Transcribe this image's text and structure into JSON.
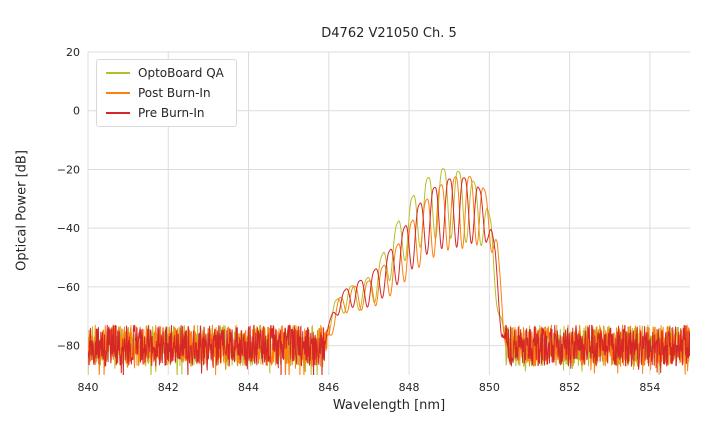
{
  "chart_data": {
    "type": "line",
    "title": "D4762 V21050 Ch. 5",
    "xlabel": "Wavelength [nm]",
    "ylabel": "Optical Power [dB]",
    "xlim": [
      840,
      855
    ],
    "ylim": [
      -90,
      20
    ],
    "xticks": [
      840,
      842,
      844,
      846,
      848,
      850,
      852,
      854
    ],
    "yticks": [
      20,
      0,
      -20,
      -40,
      -60,
      -80
    ],
    "grid": true,
    "grid_color": "#dcdcdc",
    "background_color": "#ffffff",
    "legend_position": "upper-left",
    "sample_step_nm": 0.01,
    "series": [
      {
        "name": "OptoBoard QA",
        "color": "#b9bd2b",
        "seed": 7,
        "noise_floor": -80,
        "noise_amp": 14,
        "mode_period": 0.38,
        "mode_phase": 848.85,
        "envelope": [
          [
            845.85,
            -77
          ],
          [
            846.15,
            -65
          ],
          [
            846.5,
            -60
          ],
          [
            846.9,
            -58
          ],
          [
            847.2,
            -53
          ],
          [
            847.5,
            -44
          ],
          [
            847.9,
            -33
          ],
          [
            848.3,
            -25
          ],
          [
            848.7,
            -20
          ],
          [
            849.0,
            -19.5
          ],
          [
            849.3,
            -21
          ],
          [
            849.6,
            -24
          ],
          [
            849.85,
            -28
          ],
          [
            850.05,
            -38
          ],
          [
            850.25,
            -65
          ],
          [
            850.4,
            -79
          ]
        ],
        "dip_depth": [
          [
            845.85,
            4
          ],
          [
            846.5,
            8
          ],
          [
            847.1,
            11
          ],
          [
            847.6,
            15
          ],
          [
            848.1,
            20
          ],
          [
            848.6,
            23
          ],
          [
            849.2,
            24
          ],
          [
            849.7,
            21
          ],
          [
            850.1,
            12
          ],
          [
            850.4,
            5
          ]
        ]
      },
      {
        "name": "Post Burn-In",
        "color": "#ff7f0e",
        "seed": 13,
        "noise_floor": -80,
        "noise_amp": 14,
        "mode_period": 0.36,
        "mode_phase": 849.15,
        "envelope": [
          [
            845.95,
            -77
          ],
          [
            846.25,
            -64
          ],
          [
            846.6,
            -60
          ],
          [
            847.0,
            -58
          ],
          [
            847.35,
            -53
          ],
          [
            847.7,
            -46
          ],
          [
            848.1,
            -37
          ],
          [
            848.5,
            -29
          ],
          [
            848.9,
            -24
          ],
          [
            849.25,
            -22
          ],
          [
            849.55,
            -22.5
          ],
          [
            849.8,
            -25
          ],
          [
            850.0,
            -30
          ],
          [
            850.2,
            -45
          ],
          [
            850.35,
            -70
          ],
          [
            850.5,
            -80
          ]
        ],
        "dip_depth": [
          [
            845.95,
            4
          ],
          [
            846.6,
            8
          ],
          [
            847.2,
            11
          ],
          [
            847.7,
            15
          ],
          [
            848.2,
            19
          ],
          [
            848.7,
            23
          ],
          [
            849.3,
            25
          ],
          [
            849.8,
            21
          ],
          [
            850.2,
            10
          ],
          [
            850.5,
            4
          ]
        ]
      },
      {
        "name": "Pre Burn-In",
        "color": "#d62728",
        "seed": 29,
        "noise_floor": -80,
        "noise_amp": 14,
        "mode_period": 0.37,
        "mode_phase": 849.0,
        "envelope": [
          [
            845.9,
            -77
          ],
          [
            846.2,
            -64
          ],
          [
            846.55,
            -59
          ],
          [
            846.95,
            -57
          ],
          [
            847.3,
            -52
          ],
          [
            847.65,
            -45
          ],
          [
            848.05,
            -36
          ],
          [
            848.45,
            -28
          ],
          [
            848.85,
            -24
          ],
          [
            849.15,
            -22.5
          ],
          [
            849.45,
            -23
          ],
          [
            849.7,
            -25.5
          ],
          [
            849.95,
            -31
          ],
          [
            850.15,
            -48
          ],
          [
            850.3,
            -70
          ],
          [
            850.45,
            -80
          ]
        ],
        "dip_depth": [
          [
            845.9,
            4
          ],
          [
            846.55,
            8
          ],
          [
            847.15,
            11
          ],
          [
            847.65,
            15
          ],
          [
            848.15,
            19
          ],
          [
            848.65,
            22
          ],
          [
            849.2,
            24
          ],
          [
            849.7,
            20
          ],
          [
            850.1,
            10
          ],
          [
            850.45,
            4
          ]
        ]
      }
    ]
  }
}
